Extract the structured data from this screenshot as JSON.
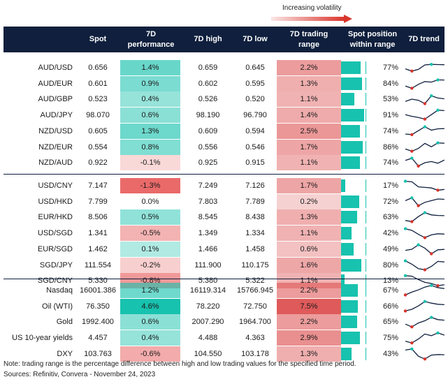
{
  "volatility_label": "Increasing volatility",
  "headers": {
    "spot": "Spot",
    "perf_line1": "7D",
    "perf_line2": "performance",
    "high": "7D high",
    "low": "7D low",
    "range_line1": "7D trading",
    "range_line2": "range",
    "pos_line1": "Spot position",
    "pos_line2": "within range",
    "trend": "7D trend"
  },
  "colors": {
    "header_bg": "#0f1f3d",
    "teal": "#17c2ae",
    "red_marker": "#d9342b",
    "line": "#0f1f3d"
  },
  "chart_data": {
    "type": "table",
    "groups": [
      {
        "rows": [
          {
            "pair": "AUD/USD",
            "spot": "0.656",
            "perf": "1.4%",
            "perf_val": 1.4,
            "high": "0.659",
            "low": "0.645",
            "range": "2.2%",
            "range_val": 2.2,
            "position": "77%",
            "position_val": 77,
            "trend": [
              0.4,
              0.2,
              0.35,
              0.75,
              0.8,
              0.78,
              0.77
            ]
          },
          {
            "pair": "AUD/EUR",
            "spot": "0.601",
            "perf": "0.9%",
            "perf_val": 0.9,
            "high": "0.602",
            "low": "0.595",
            "range": "1.3%",
            "range_val": 1.3,
            "position": "84%",
            "position_val": 84,
            "trend": [
              0.3,
              0.1,
              0.45,
              0.7,
              0.65,
              0.85,
              0.84
            ]
          },
          {
            "pair": "AUD/GBP",
            "spot": "0.523",
            "perf": "0.4%",
            "perf_val": 0.4,
            "high": "0.526",
            "low": "0.520",
            "range": "1.1%",
            "range_val": 1.1,
            "position": "53%",
            "position_val": 53,
            "trend": [
              0.3,
              0.5,
              0.4,
              0.1,
              0.8,
              0.6,
              0.53
            ]
          },
          {
            "pair": "AUD/JPY",
            "spot": "98.070",
            "perf": "0.6%",
            "perf_val": 0.6,
            "high": "98.190",
            "low": "96.790",
            "range": "1.4%",
            "range_val": 1.4,
            "position": "91%",
            "position_val": 91,
            "trend": [
              0.55,
              0.4,
              0.3,
              0.15,
              0.55,
              0.95,
              0.91
            ]
          },
          {
            "pair": "NZD/USD",
            "spot": "0.605",
            "perf": "1.3%",
            "perf_val": 1.3,
            "high": "0.609",
            "low": "0.594",
            "range": "2.5%",
            "range_val": 2.5,
            "position": "74%",
            "position_val": 74,
            "trend": [
              0.25,
              0.2,
              0.55,
              0.9,
              0.6,
              0.72,
              0.74
            ]
          },
          {
            "pair": "NZD/EUR",
            "spot": "0.554",
            "perf": "0.8%",
            "perf_val": 0.8,
            "high": "0.556",
            "low": "0.546",
            "range": "1.7%",
            "range_val": 1.7,
            "position": "86%",
            "position_val": 86,
            "trend": [
              0.35,
              0.15,
              0.4,
              0.85,
              0.55,
              0.9,
              0.86
            ]
          },
          {
            "pair": "NZD/AUD",
            "spot": "0.922",
            "perf": "-0.1%",
            "perf_val": -0.1,
            "high": "0.925",
            "low": "0.915",
            "range": "1.1%",
            "range_val": 1.1,
            "position": "74%",
            "position_val": 74,
            "trend": [
              0.7,
              0.9,
              0.2,
              0.5,
              0.6,
              0.45,
              0.74
            ]
          }
        ]
      },
      {
        "rows": [
          {
            "pair": "USD/CNY",
            "spot": "7.147",
            "perf": "-1.3%",
            "perf_val": -1.3,
            "high": "7.249",
            "low": "7.126",
            "range": "1.7%",
            "range_val": 1.7,
            "position": "17%",
            "position_val": 17,
            "trend": [
              0.9,
              0.85,
              0.4,
              0.35,
              0.3,
              0.1,
              0.17
            ]
          },
          {
            "pair": "USD/HKD",
            "spot": "7.799",
            "perf": "0.0%",
            "perf_val": 0.0,
            "high": "7.803",
            "low": "7.789",
            "range": "0.2%",
            "range_val": 0.2,
            "position": "72%",
            "position_val": 72,
            "trend": [
              0.6,
              0.85,
              0.15,
              0.45,
              0.6,
              0.75,
              0.72
            ]
          },
          {
            "pair": "EUR/HKD",
            "spot": "8.506",
            "perf": "0.5%",
            "perf_val": 0.5,
            "high": "8.545",
            "low": "8.438",
            "range": "1.3%",
            "range_val": 1.3,
            "position": "63%",
            "position_val": 63,
            "trend": [
              0.2,
              0.1,
              0.55,
              0.9,
              0.7,
              0.65,
              0.63
            ]
          },
          {
            "pair": "USD/SGD",
            "spot": "1.341",
            "perf": "-0.5%",
            "perf_val": -0.5,
            "high": "1.349",
            "low": "1.334",
            "range": "1.1%",
            "range_val": 1.1,
            "position": "42%",
            "position_val": 42,
            "trend": [
              0.9,
              0.75,
              0.4,
              0.1,
              0.35,
              0.45,
              0.42
            ]
          },
          {
            "pair": "EUR/SGD",
            "spot": "1.462",
            "perf": "0.1%",
            "perf_val": 0.1,
            "high": "1.466",
            "low": "1.458",
            "range": "0.6%",
            "range_val": 0.6,
            "position": "49%",
            "position_val": 49,
            "trend": [
              0.4,
              0.5,
              0.9,
              0.6,
              0.1,
              0.45,
              0.49
            ]
          },
          {
            "pair": "SGD/JPY",
            "spot": "111.554",
            "perf": "-0.2%",
            "perf_val": -0.2,
            "high": "111.900",
            "low": "110.175",
            "range": "1.6%",
            "range_val": 1.6,
            "position": "80%",
            "position_val": 80,
            "trend": [
              0.9,
              0.6,
              0.2,
              0.1,
              0.4,
              0.85,
              0.8
            ]
          },
          {
            "pair": "SGD/CNY",
            "spot": "5.330",
            "perf": "-0.8%",
            "perf_val": -0.8,
            "high": "5.380",
            "low": "5.322",
            "range": "1.1%",
            "range_val": 1.1,
            "position": "13%",
            "position_val": 13,
            "trend": [
              0.95,
              0.9,
              0.6,
              0.35,
              0.25,
              0.05,
              0.13
            ]
          }
        ]
      },
      {
        "rows": [
          {
            "pair": "Nasdaq",
            "spot": "16001.386",
            "perf": "1.2%",
            "perf_val": 1.2,
            "high": "16119.314",
            "low": "15766.945",
            "range": "2.2%",
            "range_val": 2.2,
            "position": "67%",
            "position_val": 67,
            "trend": [
              0.1,
              0.35,
              0.55,
              0.8,
              0.95,
              0.75,
              0.67
            ]
          },
          {
            "pair": "Oil (WTI)",
            "spot": "76.350",
            "perf": "4.6%",
            "perf_val": 4.6,
            "high": "78.220",
            "low": "72.750",
            "range": "7.5%",
            "range_val": 7.5,
            "position": "66%",
            "position_val": 66,
            "trend": [
              0.1,
              0.25,
              0.55,
              0.95,
              0.8,
              0.7,
              0.66
            ]
          },
          {
            "pair": "Gold",
            "spot": "1992.400",
            "perf": "0.6%",
            "perf_val": 0.6,
            "high": "2007.290",
            "low": "1964.700",
            "range": "2.2%",
            "range_val": 2.2,
            "position": "65%",
            "position_val": 65,
            "trend": [
              0.3,
              0.05,
              0.4,
              0.6,
              0.9,
              0.7,
              0.65
            ]
          },
          {
            "pair": "US 10-year yields",
            "spot": "4.457",
            "perf": "0.4%",
            "perf_val": 0.4,
            "high": "4.488",
            "low": "4.363",
            "range": "2.9%",
            "range_val": 2.9,
            "position": "75%",
            "position_val": 75,
            "trend": [
              0.2,
              0.05,
              0.4,
              0.85,
              0.7,
              0.95,
              0.75
            ]
          },
          {
            "pair": "DXY",
            "spot": "103.763",
            "perf": "-0.6%",
            "perf_val": -0.6,
            "high": "104.550",
            "low": "103.178",
            "range": "1.3%",
            "range_val": 1.3,
            "position": "43%",
            "position_val": 43,
            "trend": [
              0.85,
              0.95,
              0.3,
              0.05,
              0.4,
              0.45,
              0.43
            ]
          }
        ]
      }
    ]
  },
  "note": "Note: trading range is the percentage difference between high and low trading values for the specified time period.",
  "sources": "Sources: Refinitiv, Convera - November 24, 2023"
}
